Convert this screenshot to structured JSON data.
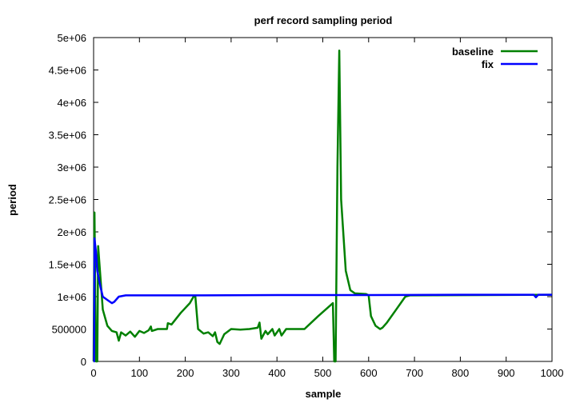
{
  "chart_data": {
    "type": "line",
    "title": "perf record sampling period",
    "xlabel": "sample",
    "ylabel": "period",
    "xlim": [
      0,
      1000
    ],
    "ylim": [
      0,
      5000000
    ],
    "xticks": [
      0,
      100,
      200,
      300,
      400,
      500,
      600,
      700,
      800,
      900,
      1000
    ],
    "xtick_labels": [
      "0",
      "100",
      "200",
      "300",
      "400",
      "500",
      "600",
      "700",
      "800",
      "900",
      "1000"
    ],
    "yticks": [
      0,
      500000,
      1000000,
      1500000,
      2000000,
      2500000,
      3000000,
      3500000,
      4000000,
      4500000,
      5000000
    ],
    "ytick_labels": [
      "0",
      "500000",
      "1e+06",
      "1.5e+06",
      "2e+06",
      "2.5e+06",
      "3e+06",
      "3.5e+06",
      "4e+06",
      "4.5e+06",
      "5e+06"
    ],
    "grid": false,
    "legend_position": "top-right",
    "series": [
      {
        "name": "baseline",
        "color": "#008000",
        "x": [
          0,
          2,
          5,
          8,
          10,
          20,
          30,
          40,
          50,
          55,
          60,
          70,
          80,
          90,
          100,
          110,
          120,
          125,
          127,
          140,
          160,
          162,
          170,
          190,
          210,
          218,
          222,
          228,
          240,
          250,
          260,
          265,
          270,
          275,
          285,
          300,
          320,
          340,
          358,
          362,
          366,
          375,
          380,
          390,
          395,
          405,
          410,
          420,
          440,
          460,
          490,
          522,
          525,
          528,
          532,
          536,
          540,
          550,
          560,
          570,
          595,
          600,
          605,
          615,
          625,
          630,
          640,
          660,
          680,
          690,
          1000
        ],
        "y": [
          0,
          2300000,
          0,
          0,
          1780000,
          800000,
          550000,
          470000,
          450000,
          320000,
          450000,
          400000,
          460000,
          380000,
          470000,
          440000,
          480000,
          540000,
          470000,
          500000,
          500000,
          590000,
          570000,
          750000,
          900000,
          1000000,
          1000000,
          500000,
          430000,
          450000,
          390000,
          450000,
          300000,
          270000,
          420000,
          500000,
          490000,
          500000,
          520000,
          600000,
          350000,
          470000,
          420000,
          500000,
          400000,
          500000,
          400000,
          500000,
          500000,
          500000,
          700000,
          900000,
          0,
          0,
          3000000,
          4800000,
          2500000,
          1400000,
          1100000,
          1050000,
          1040000,
          1020000,
          700000,
          550000,
          500000,
          520000,
          600000,
          800000,
          1000000,
          1020000,
          1030000
        ]
      },
      {
        "name": "fix",
        "color": "#0000ff",
        "x": [
          0,
          1,
          2,
          5,
          8,
          15,
          20,
          30,
          40,
          45,
          55,
          70,
          200,
          400,
          600,
          800,
          960,
          965,
          970,
          1000
        ],
        "y": [
          0,
          0,
          1900000,
          1700000,
          1400000,
          1150000,
          1000000,
          950000,
          900000,
          920000,
          1000000,
          1020000,
          1020000,
          1025000,
          1025000,
          1030000,
          1030000,
          990000,
          1030000,
          1030000
        ]
      }
    ]
  }
}
